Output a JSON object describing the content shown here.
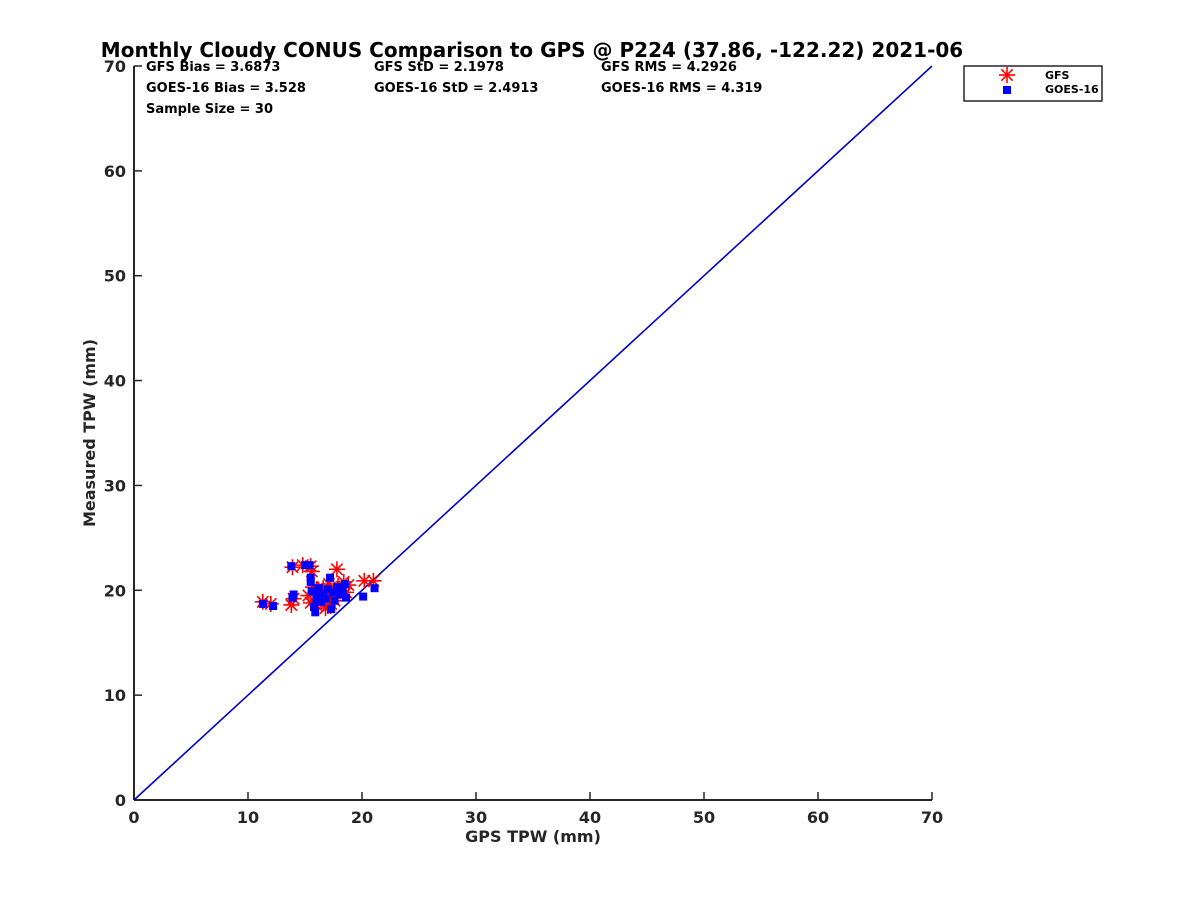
{
  "chart_data": {
    "type": "scatter",
    "title": "Monthly Cloudy CONUS Comparison to GPS @ P224 (37.86, -122.22) 2021-06",
    "xlabel": "GPS TPW (mm)",
    "ylabel": "Measured TPW (mm)",
    "xlim": [
      0,
      70
    ],
    "ylim": [
      0,
      70
    ],
    "x_ticks": [
      "0",
      "10",
      "20",
      "30",
      "40",
      "50",
      "60",
      "70"
    ],
    "y_ticks": [
      "0",
      "10",
      "20",
      "30",
      "40",
      "50",
      "60",
      "70"
    ],
    "grid": false,
    "legend_position": "top-right outside",
    "stats": {
      "gfs_bias": "GFS Bias = 3.6873",
      "goes_bias": "GOES-16 Bias = 3.528",
      "sample_size": "Sample Size = 30",
      "gfs_std": "GFS StD = 2.1978",
      "goes_std": "GOES-16 StD = 2.4913",
      "gfs_rms": "GFS RMS = 4.2926",
      "goes_rms": "GOES-16 RMS = 4.319"
    },
    "reference_line": {
      "x": [
        0,
        70
      ],
      "y": [
        0,
        70
      ],
      "color": "#0000cc"
    },
    "series": [
      {
        "name": "GFS",
        "marker": "asterisk",
        "color": "#ff0000",
        "points": [
          [
            11.3,
            18.9
          ],
          [
            12.0,
            18.7
          ],
          [
            13.8,
            18.6
          ],
          [
            13.9,
            22.2
          ],
          [
            14.8,
            22.4
          ],
          [
            15.5,
            22.3
          ],
          [
            15.6,
            21.8
          ],
          [
            15.5,
            18.8
          ],
          [
            15.7,
            20.3
          ],
          [
            16.0,
            18.6
          ],
          [
            16.2,
            19.8
          ],
          [
            16.5,
            19.5
          ],
          [
            16.8,
            18.3
          ],
          [
            17.0,
            18.5
          ],
          [
            17.2,
            19.6
          ],
          [
            17.3,
            18.7
          ],
          [
            17.8,
            22.0
          ],
          [
            17.9,
            20.4
          ],
          [
            18.1,
            19.9
          ],
          [
            18.4,
            20.8
          ],
          [
            18.8,
            20.5
          ],
          [
            20.2,
            20.9
          ],
          [
            21.0,
            20.9
          ],
          [
            15.3,
            19.5
          ],
          [
            16.6,
            20.2
          ],
          [
            17.6,
            19.0
          ],
          [
            18.6,
            19.8
          ],
          [
            16.0,
            20.1
          ],
          [
            17.1,
            20.6
          ],
          [
            14.0,
            19.2
          ]
        ]
      },
      {
        "name": "GOES-16",
        "marker": "square",
        "color": "#0000ff",
        "points": [
          [
            11.3,
            18.7
          ],
          [
            12.2,
            18.5
          ],
          [
            13.8,
            22.3
          ],
          [
            13.9,
            19.3
          ],
          [
            14.0,
            19.6
          ],
          [
            15.0,
            22.4
          ],
          [
            15.4,
            22.4
          ],
          [
            15.5,
            21.2
          ],
          [
            15.5,
            20.8
          ],
          [
            15.6,
            19.9
          ],
          [
            15.9,
            17.9
          ],
          [
            16.1,
            19.5
          ],
          [
            16.2,
            20.2
          ],
          [
            16.4,
            18.9
          ],
          [
            16.6,
            19.6
          ],
          [
            16.8,
            19.2
          ],
          [
            17.0,
            20.1
          ],
          [
            17.2,
            21.2
          ],
          [
            17.3,
            18.2
          ],
          [
            17.5,
            19.8
          ],
          [
            17.8,
            20.3
          ],
          [
            18.0,
            19.6
          ],
          [
            18.3,
            20.0
          ],
          [
            18.6,
            19.3
          ],
          [
            18.5,
            20.6
          ],
          [
            20.1,
            19.4
          ],
          [
            21.1,
            20.2
          ],
          [
            16.0,
            19.1
          ],
          [
            17.6,
            19.0
          ],
          [
            15.8,
            18.4
          ]
        ]
      }
    ]
  }
}
